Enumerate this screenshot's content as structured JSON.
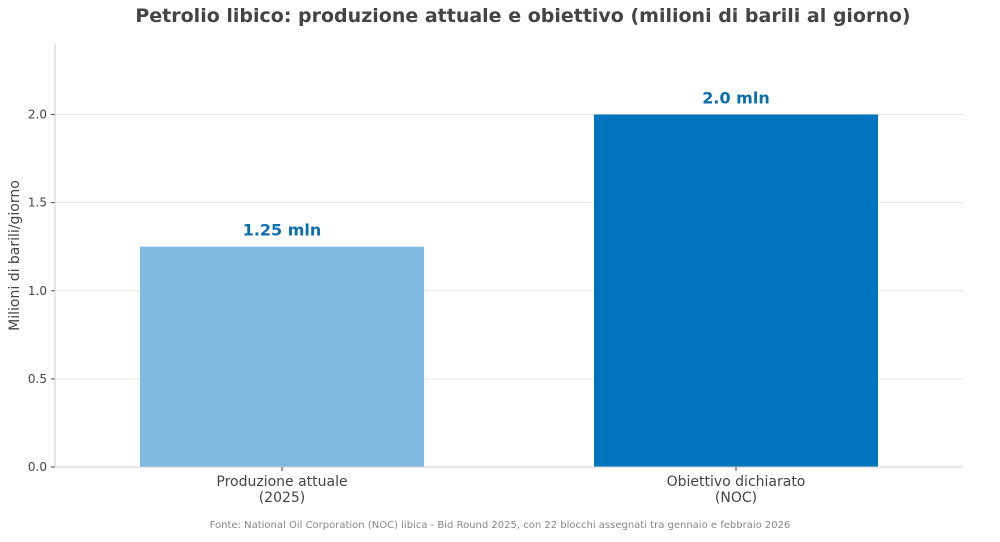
{
  "chart_data": {
    "type": "bar",
    "title": "Petrolio libico: produzione attuale e obiettivo (milioni di barili al giorno)",
    "ylabel": "Milioni di barili/giorno",
    "xlabel": "",
    "ylim": [
      0,
      2.4
    ],
    "yticks": [
      "0.0",
      "0.5",
      "1.0",
      "1.5",
      "2.0"
    ],
    "categories": [
      [
        "Produzione attuale",
        "(2025)"
      ],
      [
        "Obiettivo dichiarato",
        "(NOC)"
      ]
    ],
    "values": [
      1.25,
      2.0
    ],
    "data_labels": [
      "1.25 mln",
      "2.0 mln"
    ],
    "colors": [
      "#7fbbe0",
      "#0074bd"
    ],
    "data_label_color": "#0a6fae",
    "grid": true,
    "source": "Fonte: National Oil Corporation (NOC) libica - Bid Round 2025, con 22 blocchi assegnati tra gennaio e febbraio 2026"
  }
}
